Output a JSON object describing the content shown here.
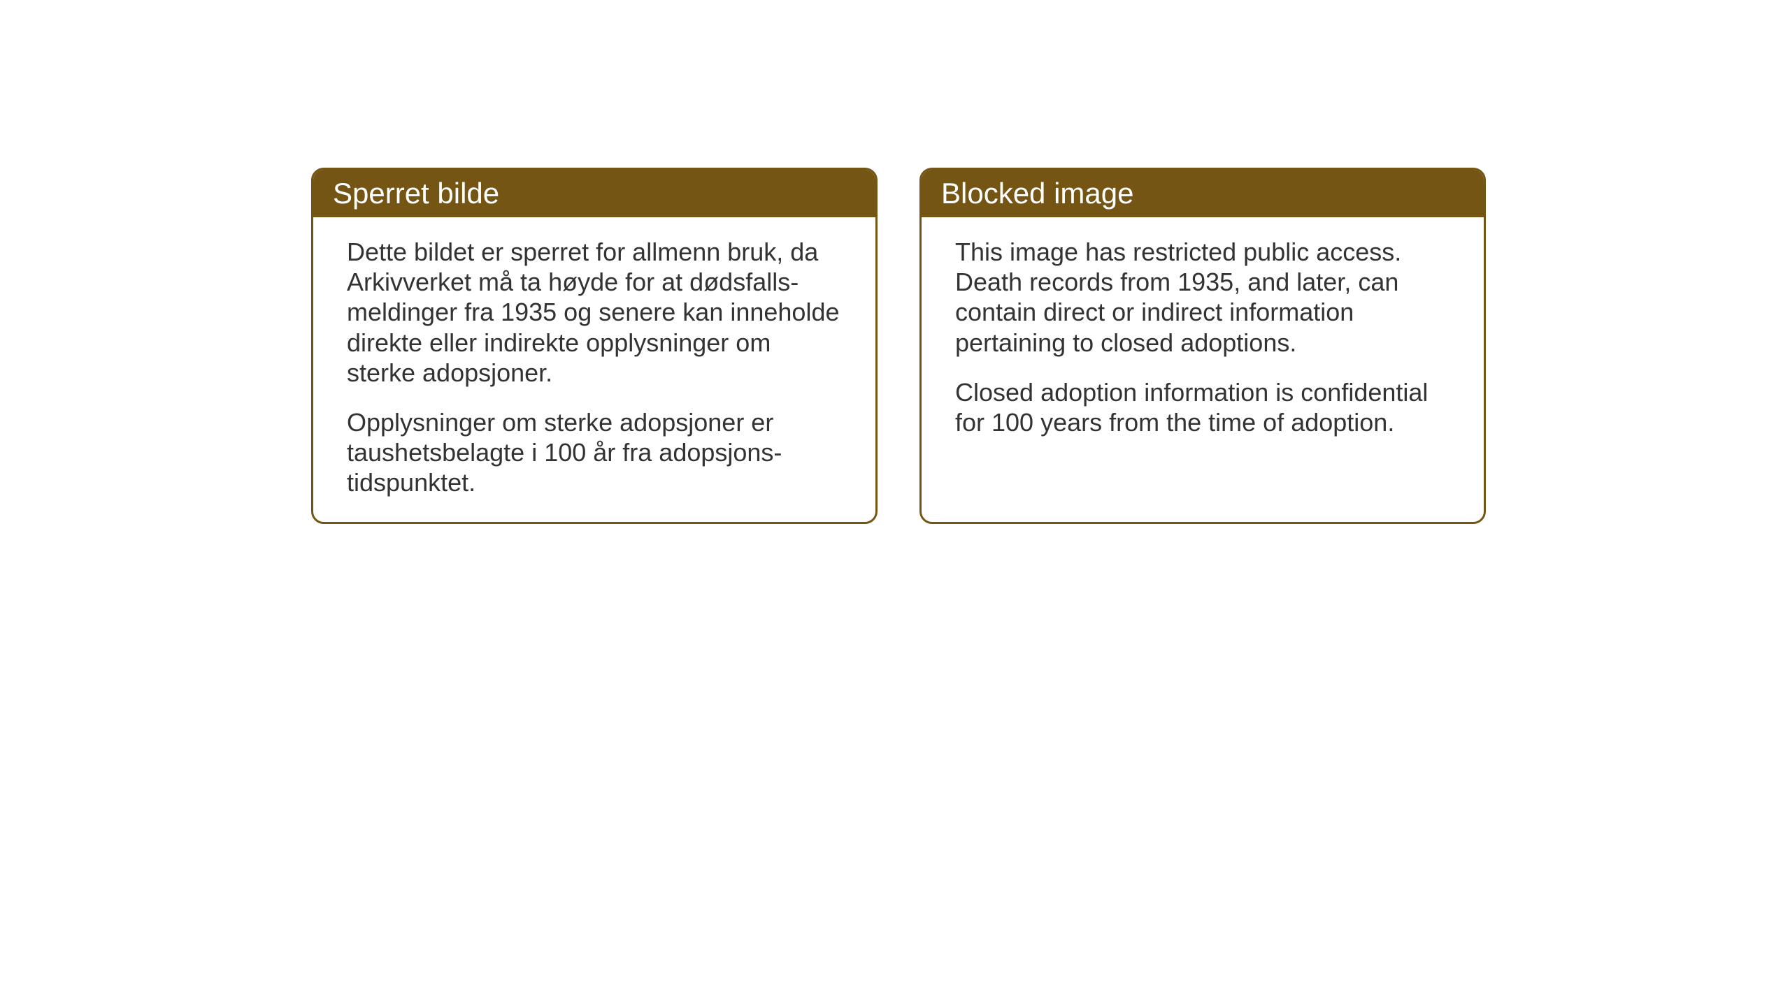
{
  "layout": {
    "background_color": "#ffffff",
    "card_border_color": "#745513",
    "card_header_bg": "#745513",
    "card_header_text_color": "#ffffff",
    "card_body_text_color": "#333333",
    "header_fontsize": 42,
    "body_fontsize": 36,
    "border_radius": 18,
    "border_width": 3
  },
  "cards": {
    "norwegian": {
      "title": "Sperret bilde",
      "paragraph1": "Dette bildet er sperret for allmenn bruk, da Arkivverket må ta høyde for at dødsfalls-meldinger fra 1935 og senere kan inneholde direkte eller indirekte opplysninger om sterke adopsjoner.",
      "paragraph2": "Opplysninger om sterke adopsjoner er taushetsbelagte i 100 år fra adopsjons-tidspunktet."
    },
    "english": {
      "title": "Blocked image",
      "paragraph1": "This image has restricted public access. Death records from 1935, and later, can contain direct or indirect information pertaining to closed adoptions.",
      "paragraph2": "Closed adoption information is confidential for 100 years from the time of adoption."
    }
  }
}
